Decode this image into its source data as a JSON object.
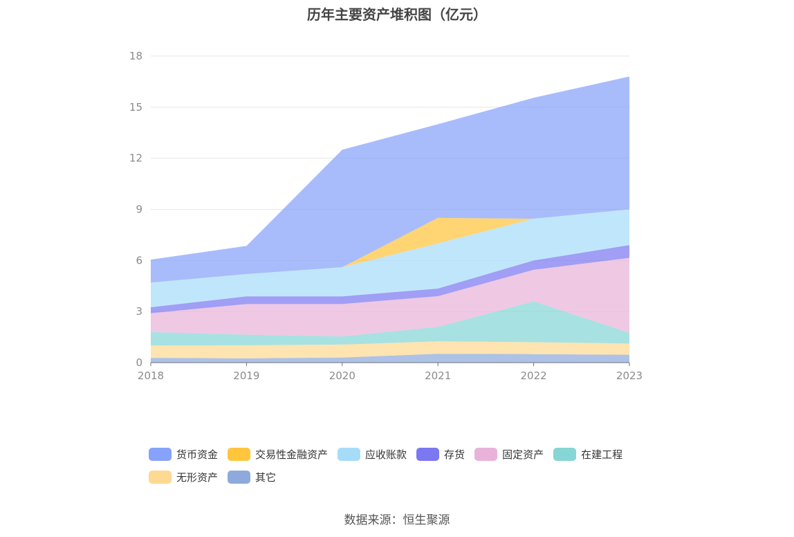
{
  "chart_data": {
    "type": "area",
    "title": "历年主要资产堆积图（亿元）",
    "stacked": true,
    "categories": [
      "2018",
      "2019",
      "2020",
      "2021",
      "2022",
      "2023"
    ],
    "ylim": [
      0,
      18
    ],
    "yticks": [
      0,
      3,
      6,
      9,
      12,
      15,
      18
    ],
    "grid": true,
    "legend_position": "bottom",
    "series": [
      {
        "name": "其它",
        "color": "#8eaadc",
        "values": [
          0.28,
          0.25,
          0.3,
          0.52,
          0.5,
          0.46
        ]
      },
      {
        "name": "无形资产",
        "color": "#fed992",
        "values": [
          0.72,
          0.77,
          0.76,
          0.73,
          0.7,
          0.66
        ]
      },
      {
        "name": "在建工程",
        "color": "#86d6d6",
        "values": [
          0.8,
          0.62,
          0.48,
          0.85,
          2.4,
          0.63
        ]
      },
      {
        "name": "固定资产",
        "color": "#e9b3d9",
        "values": [
          1.1,
          1.8,
          1.9,
          1.8,
          1.85,
          4.4
        ]
      },
      {
        "name": "存货",
        "color": "#7b78f1",
        "values": [
          0.35,
          0.45,
          0.45,
          0.45,
          0.55,
          0.75
        ]
      },
      {
        "name": "应收账款",
        "color": "#a7dcf9",
        "values": [
          1.45,
          1.31,
          1.71,
          2.65,
          2.45,
          2.1
        ]
      },
      {
        "name": "交易性金融资产",
        "color": "#ffc53d",
        "values": [
          0.0,
          0.0,
          0.0,
          1.5,
          0.0,
          0.0
        ]
      },
      {
        "name": "货币资金",
        "color": "#87a2fb",
        "values": [
          1.35,
          1.65,
          6.9,
          5.5,
          7.1,
          7.8
        ]
      }
    ]
  },
  "legend": [
    {
      "label": "货币资金",
      "color": "#87a2fb"
    },
    {
      "label": "交易性金融资产",
      "color": "#ffc53d"
    },
    {
      "label": "应收账款",
      "color": "#a7dcf9"
    },
    {
      "label": "存货",
      "color": "#7b78f1"
    },
    {
      "label": "固定资产",
      "color": "#e9b3d9"
    },
    {
      "label": "在建工程",
      "color": "#86d6d6"
    },
    {
      "label": "无形资产",
      "color": "#fed992"
    },
    {
      "label": "其它",
      "color": "#8eaadc"
    }
  ],
  "source": "数据来源：恒生聚源"
}
